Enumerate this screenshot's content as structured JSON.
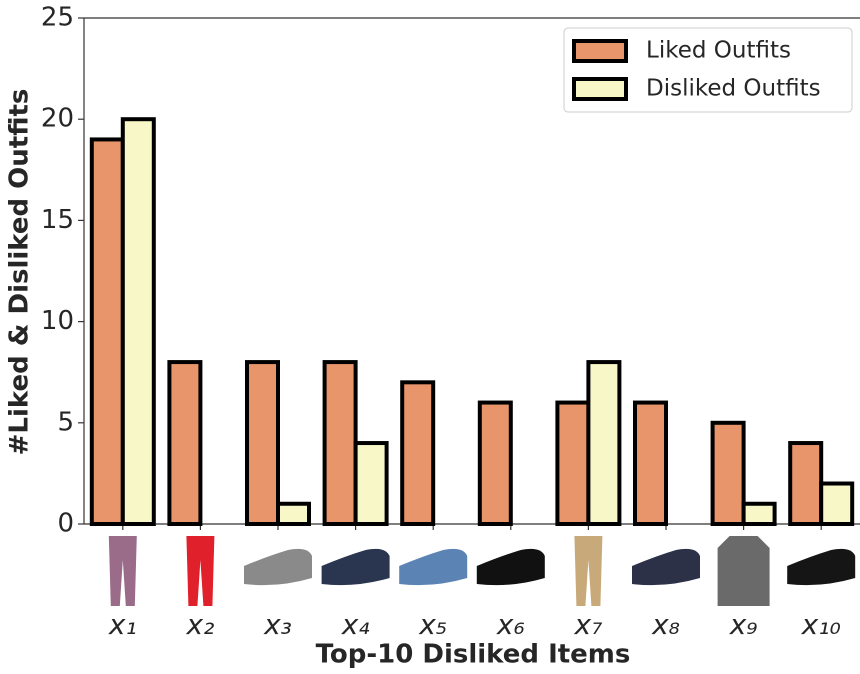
{
  "chart_data": {
    "type": "bar",
    "x_label": "Top-10 Disliked Items",
    "y_label": "#Liked & Disliked Outfits",
    "categories": [
      "x₁",
      "x₂",
      "x₃",
      "x₄",
      "x₅",
      "x₆",
      "x₇",
      "x₈",
      "x₉",
      "x₁₀"
    ],
    "series": [
      {
        "name": "Liked Outfits",
        "color": "#e9956c",
        "values": [
          19,
          8,
          8,
          8,
          7,
          6,
          6,
          6,
          5,
          4
        ]
      },
      {
        "name": "Disliked Outfits",
        "color": "#f8f7c7",
        "values": [
          20,
          0,
          1,
          4,
          0,
          0,
          8,
          0,
          1,
          2
        ]
      }
    ],
    "ylim": [
      0,
      25
    ],
    "yticks": [
      0,
      5,
      10,
      15,
      20,
      25
    ],
    "legend": "upper right"
  }
}
